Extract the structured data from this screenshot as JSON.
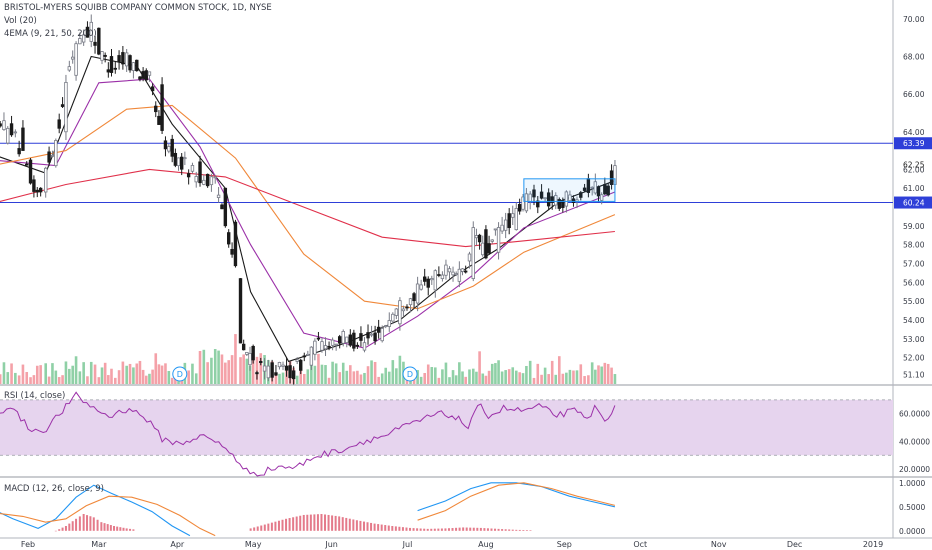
{
  "header": {
    "title": "BRISTOL-MYERS SQUIBB COMPANY COMMON STOCK, 1D, NYSE",
    "vol_label": "Vol (20)",
    "ema_label": "4EMA (9, 21, 50, 200)"
  },
  "colors": {
    "up": "#787b86",
    "down": "#1a1a1a",
    "vol_up": "#8fd0a6",
    "vol_down": "#f4a1a8",
    "ema9": "#1a1a1a",
    "ema21": "#9b30a8",
    "ema50": "#f0883a",
    "ema200": "#e0304a",
    "level": "#2e3fd8",
    "rsi": "#9b30a8",
    "rsi_band": "#e6d4ee",
    "macd": "#2196f3",
    "signal": "#f0883a",
    "hist": "#e47a8a"
  },
  "chart_data": [
    {
      "type": "candlestick",
      "name": "price",
      "ylim": [
        50.6,
        71.0
      ],
      "y_ticks": [
        "70.00",
        "68.00",
        "66.00",
        "64.00",
        "62.00",
        "61.00",
        "59.00",
        "58.00",
        "57.00",
        "56.00",
        "55.00",
        "54.00",
        "53.00",
        "52.00",
        "51.10"
      ],
      "levels": [
        {
          "value": 63.39,
          "label": "63.39"
        },
        {
          "value": 60.24,
          "label": "60.24"
        }
      ],
      "last_price": "62.25",
      "x_labels": [
        "Feb",
        "Mar",
        "Apr",
        "May",
        "Jun",
        "Jul",
        "Aug",
        "Sep",
        "Oct",
        "Nov",
        "Dec",
        "2019"
      ],
      "consolidation_box": {
        "x_from": "2018-08-16",
        "x_to": "2018-09-21",
        "y_from": 60.3,
        "y_to": 61.5
      },
      "markers": [
        {
          "date": "2018-04-02",
          "label": "D"
        },
        {
          "date": "2018-07-02",
          "label": "D"
        }
      ],
      "anchors": [
        {
          "x": "2018-01-18",
          "o": 62.8,
          "c": 63.5
        },
        {
          "x": "2018-01-24",
          "o": 63.4,
          "c": 64.6
        },
        {
          "x": "2018-01-30",
          "o": 64.2,
          "c": 62.6
        },
        {
          "x": "2018-02-02",
          "o": 62.5,
          "c": 61.2
        },
        {
          "x": "2018-02-06",
          "o": 61.0,
          "c": 60.6
        },
        {
          "x": "2018-02-08",
          "o": 60.8,
          "c": 62.0
        },
        {
          "x": "2018-02-12",
          "o": 62.2,
          "c": 63.6
        },
        {
          "x": "2018-02-16",
          "o": 64.0,
          "c": 66.5
        },
        {
          "x": "2018-02-20",
          "o": 67.0,
          "c": 68.8
        },
        {
          "x": "2018-02-26",
          "o": 68.8,
          "c": 69.6
        },
        {
          "x": "2018-03-01",
          "o": 69.5,
          "c": 68.2
        },
        {
          "x": "2018-03-06",
          "o": 68.0,
          "c": 67.4
        },
        {
          "x": "2018-03-12",
          "o": 67.5,
          "c": 68.0
        },
        {
          "x": "2018-03-16",
          "o": 67.8,
          "c": 67.2
        },
        {
          "x": "2018-03-21",
          "o": 67.0,
          "c": 66.8
        },
        {
          "x": "2018-03-26",
          "o": 66.5,
          "c": 63.8
        },
        {
          "x": "2018-03-30",
          "o": 63.6,
          "c": 62.6
        },
        {
          "x": "2018-04-04",
          "o": 62.6,
          "c": 62.2
        },
        {
          "x": "2018-04-10",
          "o": 62.4,
          "c": 61.6
        },
        {
          "x": "2018-04-16",
          "o": 61.6,
          "c": 61.2
        },
        {
          "x": "2018-04-20",
          "o": 61.0,
          "c": 59.4
        },
        {
          "x": "2018-04-24",
          "o": 59.2,
          "c": 56.6
        },
        {
          "x": "2018-04-26",
          "o": 56.2,
          "c": 52.6
        },
        {
          "x": "2018-05-01",
          "o": 52.6,
          "c": 51.8
        },
        {
          "x": "2018-05-04",
          "o": 51.8,
          "c": 51.3
        },
        {
          "x": "2018-05-10",
          "o": 51.2,
          "c": 51.4
        },
        {
          "x": "2018-05-17",
          "o": 51.3,
          "c": 51.2
        },
        {
          "x": "2018-05-24",
          "o": 51.6,
          "c": 52.5
        },
        {
          "x": "2018-05-31",
          "o": 52.6,
          "c": 52.9
        },
        {
          "x": "2018-06-07",
          "o": 52.8,
          "c": 53.0
        },
        {
          "x": "2018-06-14",
          "o": 52.4,
          "c": 52.8
        },
        {
          "x": "2018-06-21",
          "o": 52.9,
          "c": 53.6
        },
        {
          "x": "2018-06-28",
          "o": 53.8,
          "c": 54.8
        },
        {
          "x": "2018-07-05",
          "o": 54.9,
          "c": 55.5
        },
        {
          "x": "2018-07-12",
          "o": 55.6,
          "c": 56.4
        },
        {
          "x": "2018-07-19",
          "o": 56.4,
          "c": 56.8
        },
        {
          "x": "2018-07-24",
          "o": 56.6,
          "c": 56.2
        },
        {
          "x": "2018-07-27",
          "o": 56.2,
          "c": 58.8
        },
        {
          "x": "2018-08-01",
          "o": 58.8,
          "c": 57.4
        },
        {
          "x": "2018-08-06",
          "o": 57.6,
          "c": 58.8
        },
        {
          "x": "2018-08-13",
          "o": 58.8,
          "c": 59.6
        },
        {
          "x": "2018-08-17",
          "o": 59.8,
          "c": 60.6
        },
        {
          "x": "2018-08-23",
          "o": 60.8,
          "c": 60.4
        },
        {
          "x": "2018-08-30",
          "o": 60.4,
          "c": 60.2
        },
        {
          "x": "2018-09-06",
          "o": 60.3,
          "c": 60.8
        },
        {
          "x": "2018-09-12",
          "o": 61.0,
          "c": 61.2
        },
        {
          "x": "2018-09-17",
          "o": 61.2,
          "c": 60.5
        },
        {
          "x": "2018-09-21",
          "o": 61.2,
          "c": 62.2
        }
      ],
      "ema": [
        {
          "name": "EMA 9",
          "points": [
            [
              "2018-01-18",
              62.8
            ],
            [
              "2018-02-08",
              61.8
            ],
            [
              "2018-02-26",
              68.0
            ],
            [
              "2018-03-16",
              67.5
            ],
            [
              "2018-03-30",
              64.4
            ],
            [
              "2018-04-20",
              61.0
            ],
            [
              "2018-04-30",
              55.5
            ],
            [
              "2018-05-15",
              51.8
            ],
            [
              "2018-06-07",
              52.8
            ],
            [
              "2018-06-28",
              54.0
            ],
            [
              "2018-07-19",
              56.3
            ],
            [
              "2018-08-06",
              57.8
            ],
            [
              "2018-08-30",
              60.3
            ],
            [
              "2018-09-21",
              61.4
            ]
          ]
        },
        {
          "name": "EMA 21",
          "points": [
            [
              "2018-01-18",
              62.5
            ],
            [
              "2018-02-12",
              62.2
            ],
            [
              "2018-03-01",
              66.6
            ],
            [
              "2018-03-21",
              66.8
            ],
            [
              "2018-04-10",
              63.2
            ],
            [
              "2018-04-30",
              58.0
            ],
            [
              "2018-05-21",
              53.3
            ],
            [
              "2018-06-14",
              52.5
            ],
            [
              "2018-07-05",
              54.2
            ],
            [
              "2018-07-27",
              56.4
            ],
            [
              "2018-08-16",
              58.9
            ],
            [
              "2018-09-21",
              60.8
            ]
          ]
        },
        {
          "name": "EMA 50",
          "points": [
            [
              "2018-01-18",
              62.2
            ],
            [
              "2018-02-16",
              63.0
            ],
            [
              "2018-03-12",
              65.2
            ],
            [
              "2018-03-30",
              65.4
            ],
            [
              "2018-04-24",
              62.6
            ],
            [
              "2018-05-21",
              57.5
            ],
            [
              "2018-06-14",
              55.0
            ],
            [
              "2018-07-05",
              54.6
            ],
            [
              "2018-07-27",
              55.8
            ],
            [
              "2018-08-16",
              57.6
            ],
            [
              "2018-09-21",
              59.6
            ]
          ]
        },
        {
          "name": "EMA 200",
          "points": [
            [
              "2018-01-18",
              60.2
            ],
            [
              "2018-02-16",
              61.2
            ],
            [
              "2018-03-21",
              62.0
            ],
            [
              "2018-04-20",
              61.6
            ],
            [
              "2018-05-21",
              60.0
            ],
            [
              "2018-06-21",
              58.4
            ],
            [
              "2018-07-24",
              57.9
            ],
            [
              "2018-08-23",
              58.3
            ],
            [
              "2018-09-21",
              58.7
            ]
          ]
        }
      ]
    },
    {
      "type": "bar",
      "name": "volume",
      "note": "volume shown as relative heights within the price pane"
    },
    {
      "type": "line",
      "name": "RSI",
      "label": "RSI (14, close)",
      "ylim": [
        15,
        80
      ],
      "band": [
        30,
        70
      ],
      "y_ticks": [
        "60.0000",
        "40.0000",
        "20.0000"
      ],
      "points": [
        [
          "2018-01-18",
          58
        ],
        [
          "2018-01-25",
          66
        ],
        [
          "2018-02-01",
          50
        ],
        [
          "2018-02-07",
          47
        ],
        [
          "2018-02-12",
          57
        ],
        [
          "2018-02-20",
          73
        ],
        [
          "2018-02-27",
          64
        ],
        [
          "2018-03-05",
          58
        ],
        [
          "2018-03-13",
          64
        ],
        [
          "2018-03-20",
          56
        ],
        [
          "2018-03-26",
          42
        ],
        [
          "2018-04-02",
          38
        ],
        [
          "2018-04-10",
          44
        ],
        [
          "2018-04-16",
          40
        ],
        [
          "2018-04-23",
          31
        ],
        [
          "2018-04-27",
          19
        ],
        [
          "2018-05-04",
          17
        ],
        [
          "2018-05-11",
          22
        ],
        [
          "2018-05-18",
          21
        ],
        [
          "2018-05-25",
          29
        ],
        [
          "2018-06-01",
          32
        ],
        [
          "2018-06-08",
          36
        ],
        [
          "2018-06-15",
          41
        ],
        [
          "2018-06-22",
          44
        ],
        [
          "2018-06-29",
          50
        ],
        [
          "2018-07-06",
          55
        ],
        [
          "2018-07-13",
          60
        ],
        [
          "2018-07-20",
          58
        ],
        [
          "2018-07-25",
          50
        ],
        [
          "2018-07-30",
          68
        ],
        [
          "2018-08-02",
          58
        ],
        [
          "2018-08-08",
          64
        ],
        [
          "2018-08-15",
          62
        ],
        [
          "2018-08-22",
          65
        ],
        [
          "2018-08-29",
          59
        ],
        [
          "2018-09-05",
          62
        ],
        [
          "2018-09-10",
          56
        ],
        [
          "2018-09-13",
          64
        ],
        [
          "2018-09-17",
          55
        ],
        [
          "2018-09-21",
          66
        ]
      ]
    },
    {
      "type": "line",
      "name": "MACD",
      "label": "MACD (12, 26, close, 9)",
      "ylim": [
        -0.15,
        1.1
      ],
      "y_ticks": [
        "1.0000",
        "0.5000",
        "0.0000"
      ],
      "series": [
        {
          "name": "MACD",
          "points": [
            [
              "2018-01-18",
              0.45
            ],
            [
              "2018-01-26",
              0.25
            ],
            [
              "2018-02-05",
              0.05
            ],
            [
              "2018-02-12",
              0.25
            ],
            [
              "2018-02-20",
              0.7
            ],
            [
              "2018-02-27",
              0.95
            ],
            [
              "2018-03-06",
              0.78
            ],
            [
              "2018-03-14",
              0.6
            ],
            [
              "2018-03-22",
              0.4
            ],
            [
              "2018-03-30",
              0.1
            ],
            [
              "2018-04-06",
              -0.1
            ]
          ]
        },
        {
          "name": "Signal",
          "points": [
            [
              "2018-01-18",
              0.38
            ],
            [
              "2018-01-30",
              0.3
            ],
            [
              "2018-02-08",
              0.18
            ],
            [
              "2018-02-16",
              0.25
            ],
            [
              "2018-02-24",
              0.52
            ],
            [
              "2018-03-05",
              0.72
            ],
            [
              "2018-03-14",
              0.7
            ],
            [
              "2018-03-24",
              0.55
            ],
            [
              "2018-04-02",
              0.32
            ],
            [
              "2018-04-10",
              0.05
            ],
            [
              "2018-04-16",
              -0.1
            ]
          ]
        },
        {
          "name": "MACD2",
          "points": [
            [
              "2018-07-05",
              0.42
            ],
            [
              "2018-07-16",
              0.62
            ],
            [
              "2018-07-26",
              0.88
            ],
            [
              "2018-08-03",
              1.0
            ],
            [
              "2018-08-13",
              1.0
            ],
            [
              "2018-08-23",
              0.92
            ],
            [
              "2018-09-03",
              0.72
            ],
            [
              "2018-09-11",
              0.62
            ],
            [
              "2018-09-21",
              0.5
            ]
          ]
        },
        {
          "name": "Signal2",
          "points": [
            [
              "2018-07-05",
              0.22
            ],
            [
              "2018-07-16",
              0.42
            ],
            [
              "2018-07-26",
              0.72
            ],
            [
              "2018-08-06",
              0.95
            ],
            [
              "2018-08-16",
              1.0
            ],
            [
              "2018-08-27",
              0.88
            ],
            [
              "2018-09-06",
              0.72
            ],
            [
              "2018-09-14",
              0.62
            ],
            [
              "2018-09-21",
              0.53
            ]
          ]
        }
      ],
      "histogram": [
        [
          "2018-02-12",
          0.0
        ],
        [
          "2018-02-16",
          0.1
        ],
        [
          "2018-02-20",
          0.25
        ],
        [
          "2018-02-23",
          0.35
        ],
        [
          "2018-02-27",
          0.28
        ],
        [
          "2018-03-02",
          0.18
        ],
        [
          "2018-03-07",
          0.1
        ],
        [
          "2018-03-12",
          0.05
        ],
        [
          "2018-03-16",
          0.02
        ],
        [
          "2018-04-30",
          0.05
        ],
        [
          "2018-05-07",
          0.15
        ],
        [
          "2018-05-14",
          0.25
        ],
        [
          "2018-05-21",
          0.33
        ],
        [
          "2018-05-28",
          0.35
        ],
        [
          "2018-06-04",
          0.3
        ],
        [
          "2018-06-11",
          0.22
        ],
        [
          "2018-06-18",
          0.15
        ],
        [
          "2018-06-25",
          0.1
        ],
        [
          "2018-07-02",
          0.06
        ],
        [
          "2018-07-09",
          0.04
        ],
        [
          "2018-07-16",
          0.05
        ],
        [
          "2018-07-23",
          0.07
        ],
        [
          "2018-07-30",
          0.06
        ],
        [
          "2018-08-06",
          0.04
        ],
        [
          "2018-08-13",
          0.02
        ],
        [
          "2018-08-20",
          0.01
        ]
      ]
    }
  ]
}
